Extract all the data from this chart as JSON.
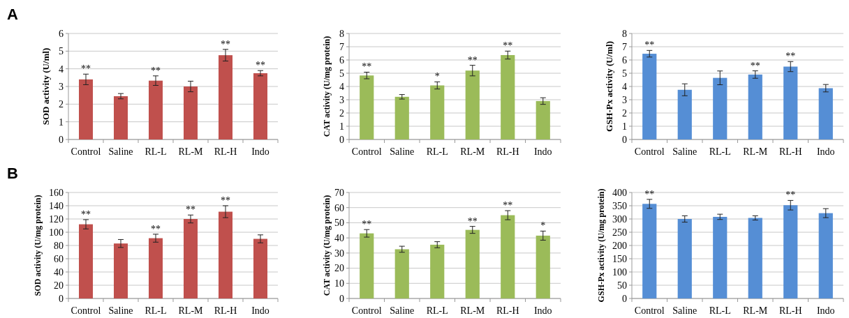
{
  "chart_data": [
    {
      "type": "bar",
      "ylabel": "SOD activity (U/ml)",
      "categories": [
        "Control",
        "Saline",
        "RL-L",
        "RL-M",
        "RL-H",
        "Indo"
      ],
      "values": [
        3.4,
        2.45,
        3.33,
        3.0,
        4.77,
        3.75
      ],
      "errors": [
        0.3,
        0.15,
        0.27,
        0.3,
        0.33,
        0.15
      ],
      "color": "#c0504d",
      "ylim": [
        0,
        6
      ],
      "yticks": [
        0,
        1,
        2,
        3,
        4,
        5,
        6
      ],
      "grid": "y",
      "annotations": [
        "A",
        {
          "text": "**",
          "x": "Control",
          "y": 3.7
        },
        {
          "text": "**",
          "x": "RL-L",
          "y": 3.6
        },
        {
          "text": "**",
          "x": "RL-H",
          "y": 5.1
        },
        {
          "text": "**",
          "x": "Indo",
          "y": 3.9
        }
      ]
    },
    {
      "type": "bar",
      "ylabel": "CAT activity (U/mg protein)",
      "categories": [
        "Control",
        "Saline",
        "RL-L",
        "RL-M",
        "RL-H",
        "Indo"
      ],
      "values": [
        4.83,
        3.22,
        4.08,
        5.2,
        6.37,
        2.9
      ],
      "errors": [
        0.25,
        0.17,
        0.27,
        0.4,
        0.3,
        0.25
      ],
      "color": "#9bbb59",
      "ylim": [
        0,
        8
      ],
      "yticks": [
        0,
        1,
        2,
        3,
        4,
        5,
        6,
        7,
        8
      ],
      "grid": "y",
      "annotations": [
        {
          "text": "**",
          "x": "Control",
          "y": 5.08
        },
        {
          "text": "*",
          "x": "RL-L",
          "y": 4.35
        },
        {
          "text": "**",
          "x": "RL-M",
          "y": 5.6
        },
        {
          "text": "**",
          "x": "RL-H",
          "y": 6.67
        }
      ]
    },
    {
      "type": "bar",
      "ylabel": "GSH-Px activity (U/ml)",
      "categories": [
        "Control",
        "Saline",
        "RL-L",
        "RL-M",
        "RL-H",
        "Indo"
      ],
      "values": [
        6.47,
        3.75,
        4.65,
        4.9,
        5.5,
        3.87
      ],
      "errors": [
        0.25,
        0.45,
        0.52,
        0.28,
        0.38,
        0.28
      ],
      "color": "#558ed5",
      "ylim": [
        0,
        8
      ],
      "yticks": [
        0,
        1,
        2,
        3,
        4,
        5,
        6,
        7,
        8
      ],
      "grid": "y",
      "annotations": [
        {
          "text": "**",
          "x": "Control",
          "y": 6.72
        },
        {
          "text": "**",
          "x": "RL-M",
          "y": 5.18
        },
        {
          "text": "**",
          "x": "RL-H",
          "y": 5.88
        }
      ]
    },
    {
      "type": "bar",
      "ylabel": "SOD activity (U/mg protein)",
      "categories": [
        "Control",
        "Saline",
        "RL-L",
        "RL-M",
        "RL-H",
        "Indo"
      ],
      "values": [
        112,
        83,
        91,
        120,
        131,
        90
      ],
      "errors": [
        7,
        6,
        6,
        6,
        9,
        6
      ],
      "color": "#c0504d",
      "ylim": [
        0,
        160
      ],
      "yticks": [
        0,
        20,
        40,
        60,
        80,
        100,
        120,
        140,
        160
      ],
      "grid": "y",
      "annotations": [
        "B",
        {
          "text": "**",
          "x": "Control",
          "y": 119
        },
        {
          "text": "**",
          "x": "RL-L",
          "y": 97
        },
        {
          "text": "**",
          "x": "RL-M",
          "y": 126
        },
        {
          "text": "**",
          "x": "RL-H",
          "y": 140
        }
      ]
    },
    {
      "type": "bar",
      "ylabel": "CAT activity (U/mg protein)",
      "categories": [
        "Control",
        "Saline",
        "RL-L",
        "RL-M",
        "RL-H",
        "Indo"
      ],
      "values": [
        43,
        32.5,
        35.5,
        45.3,
        55,
        41.5
      ],
      "errors": [
        2.5,
        2,
        2,
        2.3,
        3,
        3
      ],
      "color": "#9bbb59",
      "ylim": [
        0,
        70
      ],
      "yticks": [
        0,
        10,
        20,
        30,
        40,
        50,
        60,
        70
      ],
      "grid": "y",
      "annotations": [
        {
          "text": "**",
          "x": "Control",
          "y": 45.5
        },
        {
          "text": "**",
          "x": "RL-M",
          "y": 47.6
        },
        {
          "text": "**",
          "x": "RL-H",
          "y": 58
        },
        {
          "text": "*",
          "x": "Indo",
          "y": 44.5
        }
      ]
    },
    {
      "type": "bar",
      "ylabel": "GSH-Px activity (U/mg protein)",
      "categories": [
        "Control",
        "Saline",
        "RL-L",
        "RL-M",
        "RL-H",
        "Indo"
      ],
      "values": [
        357,
        300,
        308,
        304,
        352,
        322
      ],
      "errors": [
        17,
        12,
        10,
        8,
        18,
        17
      ],
      "color": "#558ed5",
      "ylim": [
        0,
        400
      ],
      "yticks": [
        0,
        50,
        100,
        150,
        200,
        250,
        300,
        350,
        400
      ],
      "grid": "y",
      "annotations": [
        {
          "text": "**",
          "x": "Control",
          "y": 374
        },
        {
          "text": "**",
          "x": "RL-H",
          "y": 370
        }
      ]
    }
  ]
}
